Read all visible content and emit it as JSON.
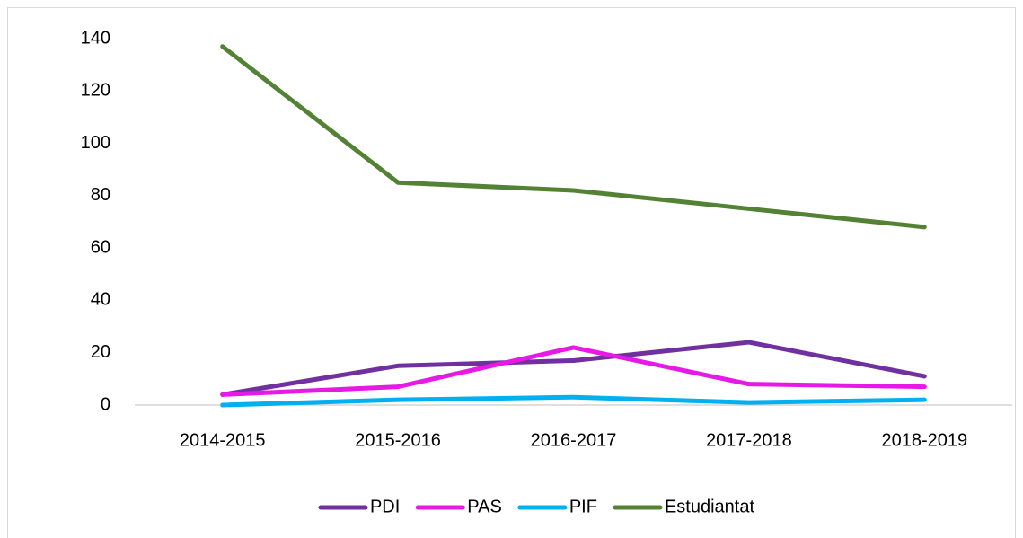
{
  "chart_data": {
    "type": "line",
    "categories": [
      "2014-2015",
      "2015-2016",
      "2016-2017",
      "2017-2018",
      "2018-2019"
    ],
    "series": [
      {
        "name": "PDI",
        "color": "#7030a0",
        "values": [
          4,
          15,
          17,
          24,
          11
        ]
      },
      {
        "name": "PAS",
        "color": "#e619e6",
        "values": [
          4,
          7,
          22,
          8,
          7
        ]
      },
      {
        "name": "PIF",
        "color": "#00b0f0",
        "values": [
          0,
          2,
          3,
          1,
          2
        ]
      },
      {
        "name": "Estudiantat",
        "color": "#548235",
        "values": [
          137,
          85,
          82,
          75,
          68
        ]
      }
    ],
    "ylim": [
      0,
      140
    ],
    "yticks": [
      0,
      20,
      40,
      60,
      80,
      100,
      120,
      140
    ],
    "grid": false,
    "legend": "bottom"
  }
}
